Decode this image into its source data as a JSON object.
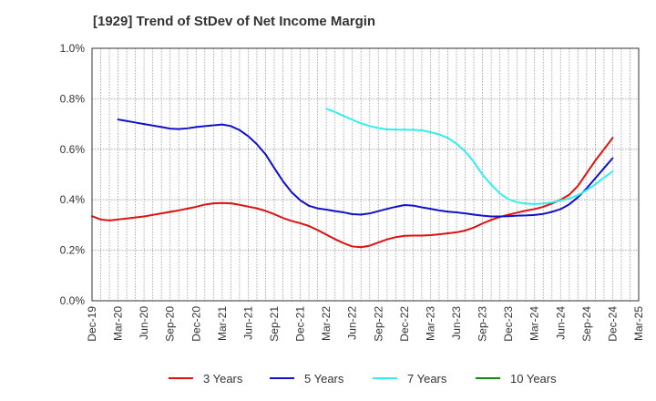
{
  "chart_data": {
    "type": "line",
    "title": "[1929]  Trend of StDev of Net Income Margin",
    "xlabel": "",
    "ylabel": "",
    "x_tick_labels": [
      "Dec-19",
      "Mar-20",
      "Jun-20",
      "Sep-20",
      "Dec-20",
      "Mar-21",
      "Jun-21",
      "Sep-21",
      "Dec-21",
      "Mar-22",
      "Jun-22",
      "Sep-22",
      "Dec-22",
      "Mar-23",
      "Jun-23",
      "Sep-23",
      "Dec-23",
      "Mar-24",
      "Jun-24",
      "Sep-24",
      "Dec-24",
      "Mar-25"
    ],
    "y_tick_labels": [
      "0.0%",
      "0.2%",
      "0.4%",
      "0.6%",
      "0.8%",
      "1.0%"
    ],
    "ylim": [
      0,
      1.0
    ],
    "y_unit": "%",
    "grid": true,
    "legend_position": "bottom",
    "colors": {
      "3 Years": "#dd1111",
      "5 Years": "#1111cc",
      "7 Years": "#33eeee",
      "10 Years": "#118811"
    },
    "series": [
      {
        "name": "3 Years",
        "color": "#dd1111",
        "points": [
          [
            "Dec-19",
            0.335
          ],
          [
            "Jan-20",
            0.322
          ],
          [
            "Feb-20",
            0.318
          ],
          [
            "Mar-20",
            0.322
          ],
          [
            "Apr-20",
            0.326
          ],
          [
            "May-20",
            0.33
          ],
          [
            "Jun-20",
            0.334
          ],
          [
            "Jul-20",
            0.34
          ],
          [
            "Aug-20",
            0.346
          ],
          [
            "Sep-20",
            0.352
          ],
          [
            "Oct-20",
            0.358
          ],
          [
            "Nov-20",
            0.365
          ],
          [
            "Dec-20",
            0.372
          ],
          [
            "Jan-21",
            0.381
          ],
          [
            "Feb-21",
            0.386
          ],
          [
            "Mar-21",
            0.387
          ],
          [
            "Apr-21",
            0.386
          ],
          [
            "May-21",
            0.38
          ],
          [
            "Jun-21",
            0.373
          ],
          [
            "Jul-21",
            0.366
          ],
          [
            "Aug-21",
            0.356
          ],
          [
            "Sep-21",
            0.343
          ],
          [
            "Oct-21",
            0.328
          ],
          [
            "Nov-21",
            0.316
          ],
          [
            "Dec-21",
            0.307
          ],
          [
            "Jan-22",
            0.296
          ],
          [
            "Feb-22",
            0.28
          ],
          [
            "Mar-22",
            0.262
          ],
          [
            "Apr-22",
            0.244
          ],
          [
            "May-22",
            0.228
          ],
          [
            "Jun-22",
            0.215
          ],
          [
            "Jul-22",
            0.212
          ],
          [
            "Aug-22",
            0.218
          ],
          [
            "Sep-22",
            0.231
          ],
          [
            "Oct-22",
            0.243
          ],
          [
            "Nov-22",
            0.252
          ],
          [
            "Dec-22",
            0.257
          ],
          [
            "Jan-23",
            0.258
          ],
          [
            "Feb-23",
            0.258
          ],
          [
            "Mar-23",
            0.26
          ],
          [
            "Apr-23",
            0.263
          ],
          [
            "May-23",
            0.267
          ],
          [
            "Jun-23",
            0.271
          ],
          [
            "Jul-23",
            0.278
          ],
          [
            "Aug-23",
            0.29
          ],
          [
            "Sep-23",
            0.306
          ],
          [
            "Oct-23",
            0.32
          ],
          [
            "Nov-23",
            0.332
          ],
          [
            "Dec-23",
            0.341
          ],
          [
            "Jan-24",
            0.349
          ],
          [
            "Feb-24",
            0.357
          ],
          [
            "Mar-24",
            0.363
          ],
          [
            "Apr-24",
            0.372
          ],
          [
            "May-24",
            0.385
          ],
          [
            "Jun-24",
            0.4
          ],
          [
            "Jul-24",
            0.42
          ],
          [
            "Aug-24",
            0.455
          ],
          [
            "Sep-24",
            0.505
          ],
          [
            "Oct-24",
            0.555
          ],
          [
            "Nov-24",
            0.6
          ],
          [
            "Dec-24",
            0.645
          ]
        ]
      },
      {
        "name": "5 Years",
        "color": "#1111cc",
        "points": [
          [
            "Mar-20",
            0.718
          ],
          [
            "Apr-20",
            0.712
          ],
          [
            "May-20",
            0.706
          ],
          [
            "Jun-20",
            0.7
          ],
          [
            "Jul-20",
            0.694
          ],
          [
            "Aug-20",
            0.688
          ],
          [
            "Sep-20",
            0.682
          ],
          [
            "Oct-20",
            0.68
          ],
          [
            "Nov-20",
            0.683
          ],
          [
            "Dec-20",
            0.688
          ],
          [
            "Jan-21",
            0.692
          ],
          [
            "Feb-21",
            0.695
          ],
          [
            "Mar-21",
            0.698
          ],
          [
            "Apr-21",
            0.692
          ],
          [
            "May-21",
            0.676
          ],
          [
            "Jun-21",
            0.652
          ],
          [
            "Jul-21",
            0.62
          ],
          [
            "Aug-21",
            0.58
          ],
          [
            "Sep-21",
            0.526
          ],
          [
            "Oct-21",
            0.474
          ],
          [
            "Nov-21",
            0.43
          ],
          [
            "Dec-21",
            0.398
          ],
          [
            "Jan-22",
            0.376
          ],
          [
            "Feb-22",
            0.366
          ],
          [
            "Mar-22",
            0.361
          ],
          [
            "Apr-22",
            0.355
          ],
          [
            "May-22",
            0.35
          ],
          [
            "Jun-22",
            0.343
          ],
          [
            "Jul-22",
            0.341
          ],
          [
            "Aug-22",
            0.346
          ],
          [
            "Sep-22",
            0.355
          ],
          [
            "Oct-22",
            0.364
          ],
          [
            "Nov-22",
            0.372
          ],
          [
            "Dec-22",
            0.379
          ],
          [
            "Jan-23",
            0.377
          ],
          [
            "Feb-23",
            0.37
          ],
          [
            "Mar-23",
            0.364
          ],
          [
            "Apr-23",
            0.358
          ],
          [
            "May-23",
            0.353
          ],
          [
            "Jun-23",
            0.35
          ],
          [
            "Jul-23",
            0.346
          ],
          [
            "Aug-23",
            0.341
          ],
          [
            "Sep-23",
            0.337
          ],
          [
            "Oct-23",
            0.334
          ],
          [
            "Nov-23",
            0.334
          ],
          [
            "Dec-23",
            0.335
          ],
          [
            "Jan-24",
            0.337
          ],
          [
            "Feb-24",
            0.338
          ],
          [
            "Mar-24",
            0.34
          ],
          [
            "Apr-24",
            0.344
          ],
          [
            "May-24",
            0.352
          ],
          [
            "Jun-24",
            0.363
          ],
          [
            "Jul-24",
            0.382
          ],
          [
            "Aug-24",
            0.41
          ],
          [
            "Sep-24",
            0.445
          ],
          [
            "Oct-24",
            0.485
          ],
          [
            "Nov-24",
            0.525
          ],
          [
            "Dec-24",
            0.565
          ]
        ]
      },
      {
        "name": "7 Years",
        "color": "#33eeee",
        "points": [
          [
            "Mar-22",
            0.76
          ],
          [
            "Apr-22",
            0.748
          ],
          [
            "May-22",
            0.732
          ],
          [
            "Jun-22",
            0.717
          ],
          [
            "Jul-22",
            0.703
          ],
          [
            "Aug-22",
            0.692
          ],
          [
            "Sep-22",
            0.684
          ],
          [
            "Oct-22",
            0.679
          ],
          [
            "Nov-22",
            0.678
          ],
          [
            "Dec-22",
            0.678
          ],
          [
            "Jan-23",
            0.677
          ],
          [
            "Feb-23",
            0.675
          ],
          [
            "Mar-23",
            0.668
          ],
          [
            "Apr-23",
            0.659
          ],
          [
            "May-23",
            0.645
          ],
          [
            "Jun-23",
            0.622
          ],
          [
            "Jul-23",
            0.592
          ],
          [
            "Aug-23",
            0.55
          ],
          [
            "Sep-23",
            0.5
          ],
          [
            "Oct-23",
            0.46
          ],
          [
            "Nov-23",
            0.425
          ],
          [
            "Dec-23",
            0.402
          ],
          [
            "Jan-24",
            0.39
          ],
          [
            "Feb-24",
            0.385
          ],
          [
            "Mar-24",
            0.383
          ],
          [
            "Apr-24",
            0.385
          ],
          [
            "May-24",
            0.39
          ],
          [
            "Jun-24",
            0.397
          ],
          [
            "Jul-24",
            0.405
          ],
          [
            "Aug-24",
            0.418
          ],
          [
            "Sep-24",
            0.438
          ],
          [
            "Oct-24",
            0.461
          ],
          [
            "Nov-24",
            0.488
          ],
          [
            "Dec-24",
            0.512
          ]
        ]
      },
      {
        "name": "10 Years",
        "color": "#118811",
        "points": []
      }
    ]
  }
}
